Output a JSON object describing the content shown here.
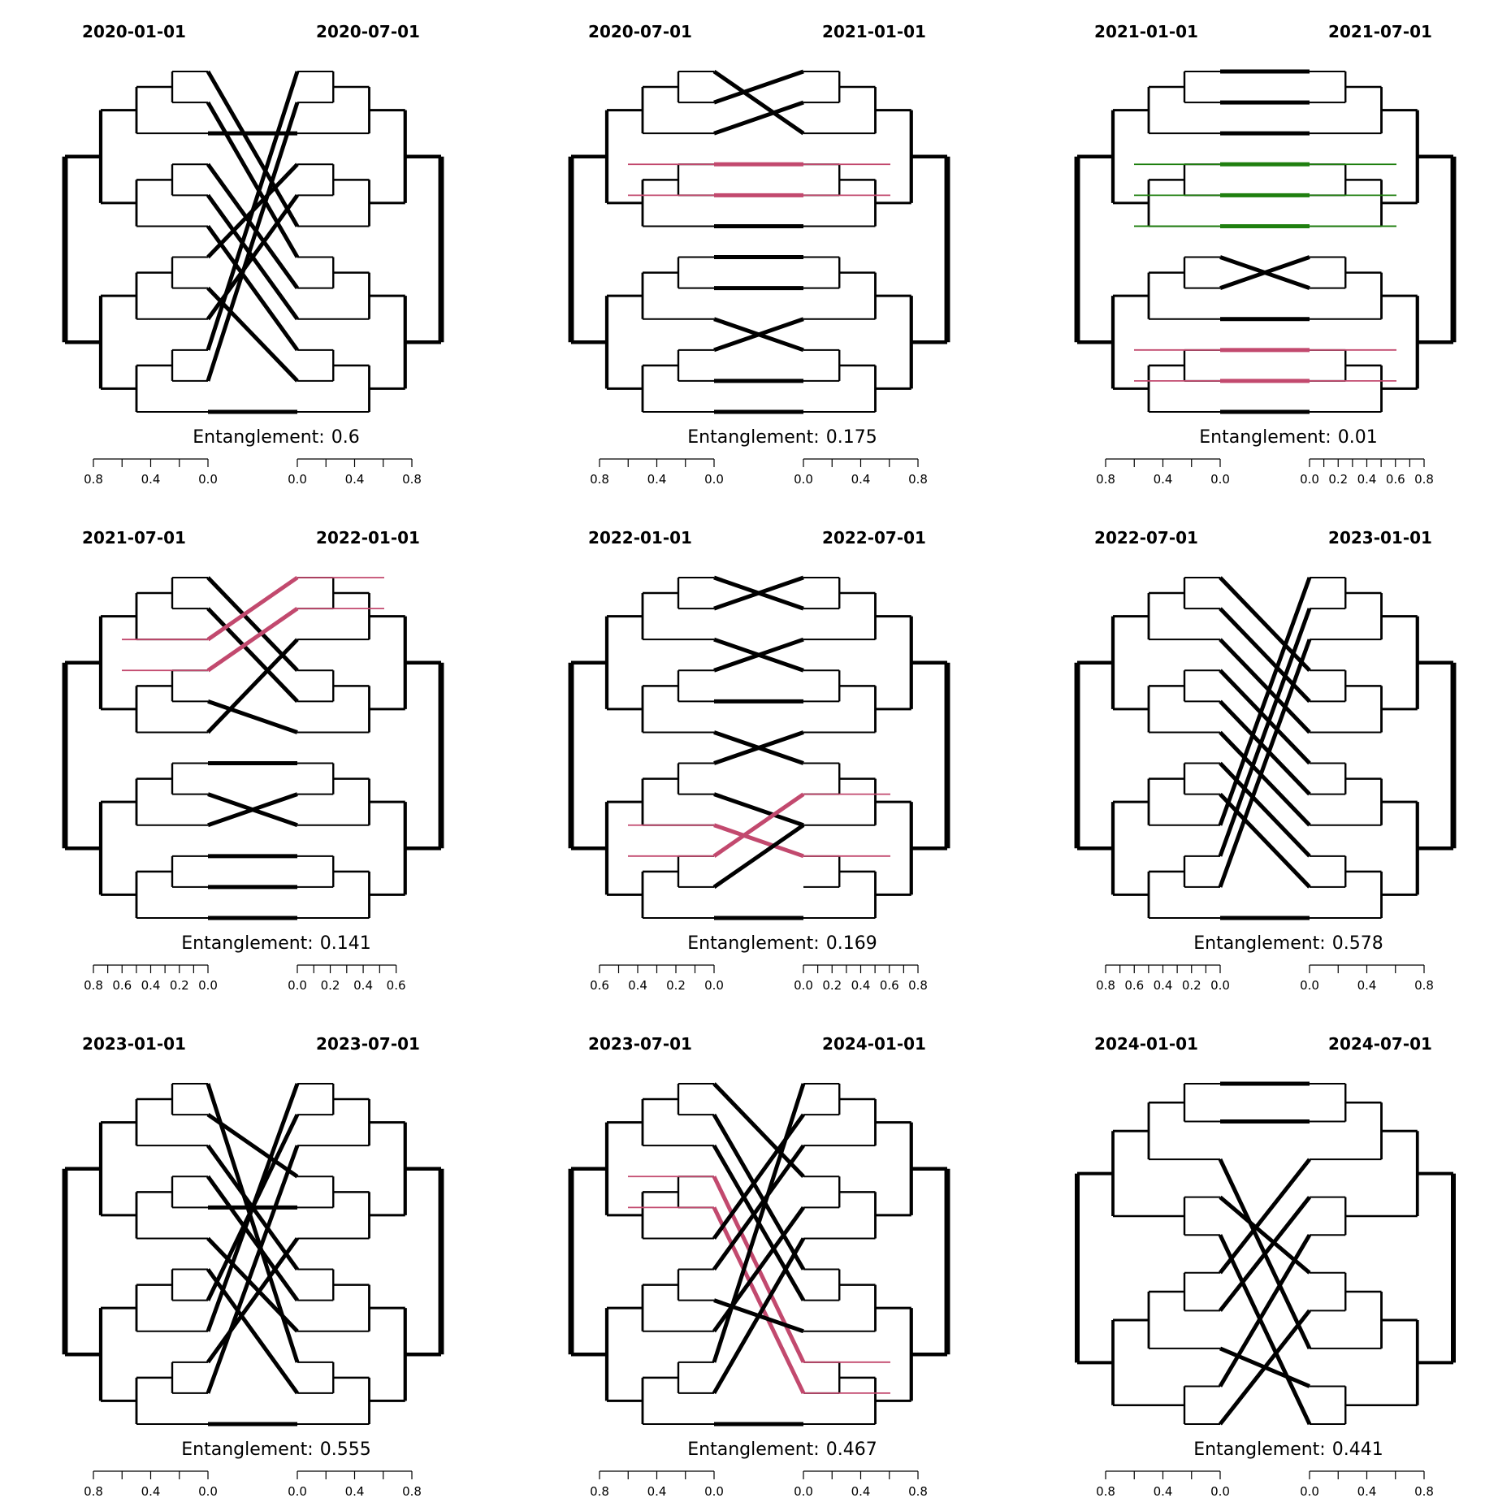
{
  "colors": {
    "ink": "#000000",
    "common_subtree_pink": "#C2496E",
    "common_subtree_green": "#1F7F0F"
  },
  "chart_data": [
    {
      "type": "tanglegram",
      "left_title": "2020-01-01",
      "right_title": "2020-07-01",
      "entanglement_prefix": "Entanglement:",
      "entanglement": 0.6,
      "left_axis_ticks": [
        "0.8",
        "0.4",
        "0.0"
      ],
      "left_axis_max": 0.8,
      "right_axis_ticks": [
        "0.0",
        "0.4",
        "0.8"
      ],
      "right_axis_max": 0.8,
      "leaf_count": 12,
      "connections": [
        [
          0,
          5
        ],
        [
          1,
          6
        ],
        [
          2,
          2
        ],
        [
          3,
          7
        ],
        [
          4,
          8
        ],
        [
          5,
          9
        ],
        [
          6,
          3
        ],
        [
          7,
          10
        ],
        [
          8,
          4
        ],
        [
          9,
          0
        ],
        [
          10,
          1
        ],
        [
          11,
          11
        ]
      ],
      "highlight": []
    },
    {
      "type": "tanglegram",
      "left_title": "2020-07-01",
      "right_title": "2021-01-01",
      "entanglement_prefix": "Entanglement:",
      "entanglement": 0.175,
      "left_axis_ticks": [
        "0.8",
        "0.4",
        "0.0"
      ],
      "left_axis_max": 0.8,
      "right_axis_ticks": [
        "0.0",
        "0.4",
        "0.8"
      ],
      "right_axis_max": 0.8,
      "leaf_count": 12,
      "connections": [
        [
          0,
          2
        ],
        [
          1,
          0
        ],
        [
          2,
          1
        ],
        [
          3,
          3
        ],
        [
          4,
          4
        ],
        [
          5,
          5
        ],
        [
          6,
          6
        ],
        [
          7,
          7
        ],
        [
          8,
          9
        ],
        [
          9,
          8
        ],
        [
          10,
          10
        ],
        [
          11,
          11
        ]
      ],
      "highlight": [
        {
          "color": "common_subtree_pink",
          "links": [
            3,
            4
          ]
        }
      ]
    },
    {
      "type": "tanglegram",
      "left_title": "2021-01-01",
      "right_title": "2021-07-01",
      "entanglement_prefix": "Entanglement:",
      "entanglement": 0.01,
      "left_axis_ticks": [
        "0.8",
        "0.4",
        "0.0"
      ],
      "left_axis_max": 0.8,
      "right_axis_ticks": [
        "0.0",
        "0.2",
        "0.4",
        "0.6",
        "0.8"
      ],
      "right_axis_max": 0.8,
      "leaf_count": 12,
      "connections": [
        [
          0,
          0
        ],
        [
          1,
          1
        ],
        [
          2,
          2
        ],
        [
          3,
          3
        ],
        [
          4,
          4
        ],
        [
          5,
          5
        ],
        [
          6,
          7
        ],
        [
          7,
          6
        ],
        [
          8,
          8
        ],
        [
          9,
          9
        ],
        [
          10,
          10
        ],
        [
          11,
          11
        ]
      ],
      "highlight": [
        {
          "color": "common_subtree_green",
          "links": [
            3,
            4,
            5
          ]
        },
        {
          "color": "common_subtree_pink",
          "links": [
            9,
            10
          ]
        }
      ]
    },
    {
      "type": "tanglegram",
      "left_title": "2021-07-01",
      "right_title": "2022-01-01",
      "entanglement_prefix": "Entanglement:",
      "entanglement": 0.141,
      "left_axis_ticks": [
        "0.8",
        "0.6",
        "0.4",
        "0.2",
        "0.0"
      ],
      "left_axis_max": 0.8,
      "right_axis_ticks": [
        "0.0",
        "0.2",
        "0.4",
        "0.6"
      ],
      "right_axis_max": 0.6,
      "leaf_count": 12,
      "connections": [
        [
          0,
          3
        ],
        [
          1,
          4
        ],
        [
          2,
          0
        ],
        [
          3,
          1
        ],
        [
          4,
          5
        ],
        [
          5,
          2
        ],
        [
          6,
          6
        ],
        [
          7,
          8
        ],
        [
          8,
          7
        ],
        [
          9,
          9
        ],
        [
          10,
          10
        ],
        [
          11,
          11
        ]
      ],
      "highlight": [
        {
          "color": "common_subtree_pink",
          "links": [
            2,
            3
          ]
        }
      ]
    },
    {
      "type": "tanglegram",
      "left_title": "2022-01-01",
      "right_title": "2022-07-01",
      "entanglement_prefix": "Entanglement:",
      "entanglement": 0.169,
      "left_axis_ticks": [
        "0.6",
        "0.4",
        "0.2",
        "0.0"
      ],
      "left_axis_max": 0.6,
      "right_axis_ticks": [
        "0.0",
        "0.2",
        "0.4",
        "0.6",
        "0.8"
      ],
      "right_axis_max": 0.8,
      "leaf_count": 12,
      "connections": [
        [
          0,
          1
        ],
        [
          1,
          0
        ],
        [
          2,
          3
        ],
        [
          3,
          2
        ],
        [
          4,
          4
        ],
        [
          5,
          6
        ],
        [
          6,
          5
        ],
        [
          7,
          8
        ],
        [
          8,
          9
        ],
        [
          9,
          7
        ],
        [
          10,
          8
        ],
        [
          11,
          11
        ]
      ],
      "highlight": [
        {
          "color": "common_subtree_pink",
          "links": [
            8,
            9
          ]
        }
      ]
    },
    {
      "type": "tanglegram",
      "left_title": "2022-07-01",
      "right_title": "2023-01-01",
      "entanglement_prefix": "Entanglement:",
      "entanglement": 0.578,
      "left_axis_ticks": [
        "0.8",
        "0.6",
        "0.4",
        "0.2",
        "0.0"
      ],
      "left_axis_max": 0.8,
      "right_axis_ticks": [
        "0.0",
        "0.4",
        "0.8"
      ],
      "right_axis_max": 0.8,
      "leaf_count": 12,
      "connections": [
        [
          0,
          3
        ],
        [
          1,
          4
        ],
        [
          2,
          5
        ],
        [
          3,
          6
        ],
        [
          4,
          7
        ],
        [
          5,
          8
        ],
        [
          6,
          9
        ],
        [
          7,
          10
        ],
        [
          8,
          0
        ],
        [
          9,
          1
        ],
        [
          10,
          2
        ],
        [
          11,
          11
        ]
      ],
      "highlight": []
    },
    {
      "type": "tanglegram",
      "left_title": "2023-01-01",
      "right_title": "2023-07-01",
      "entanglement_prefix": "Entanglement:",
      "entanglement": 0.555,
      "left_axis_ticks": [
        "0.8",
        "0.4",
        "0.0"
      ],
      "left_axis_max": 0.8,
      "right_axis_ticks": [
        "0.0",
        "0.4",
        "0.8"
      ],
      "right_axis_max": 0.8,
      "leaf_count": 12,
      "connections": [
        [
          0,
          9
        ],
        [
          1,
          3
        ],
        [
          2,
          6
        ],
        [
          3,
          7
        ],
        [
          4,
          4
        ],
        [
          5,
          8
        ],
        [
          6,
          10
        ],
        [
          7,
          1
        ],
        [
          8,
          0
        ],
        [
          9,
          5
        ],
        [
          10,
          2
        ],
        [
          11,
          11
        ]
      ],
      "highlight": []
    },
    {
      "type": "tanglegram",
      "left_title": "2023-07-01",
      "right_title": "2024-01-01",
      "entanglement_prefix": "Entanglement:",
      "entanglement": 0.467,
      "left_axis_ticks": [
        "0.8",
        "0.4",
        "0.0"
      ],
      "left_axis_max": 0.8,
      "right_axis_ticks": [
        "0.0",
        "0.4",
        "0.8"
      ],
      "right_axis_max": 0.8,
      "leaf_count": 12,
      "connections": [
        [
          0,
          3
        ],
        [
          1,
          6
        ],
        [
          2,
          7
        ],
        [
          3,
          9
        ],
        [
          4,
          10
        ],
        [
          5,
          1
        ],
        [
          6,
          2
        ],
        [
          7,
          8
        ],
        [
          8,
          4
        ],
        [
          9,
          0
        ],
        [
          10,
          5
        ],
        [
          11,
          11
        ]
      ],
      "highlight": [
        {
          "color": "common_subtree_pink",
          "links": [
            3,
            4
          ]
        }
      ]
    },
    {
      "type": "tanglegram",
      "left_title": "2024-01-01",
      "right_title": "2024-07-01",
      "entanglement_prefix": "Entanglement:",
      "entanglement": 0.441,
      "left_axis_ticks": [
        "0.8",
        "0.4",
        "0.0"
      ],
      "left_axis_max": 0.8,
      "right_axis_ticks": [
        "0.0",
        "0.4",
        "0.8"
      ],
      "right_axis_max": 0.8,
      "leaf_count": 10,
      "connections": [
        [
          0,
          0
        ],
        [
          1,
          1
        ],
        [
          2,
          7
        ],
        [
          3,
          5
        ],
        [
          4,
          9
        ],
        [
          5,
          2
        ],
        [
          6,
          3
        ],
        [
          7,
          8
        ],
        [
          8,
          4
        ],
        [
          9,
          6
        ]
      ],
      "highlight": []
    }
  ]
}
